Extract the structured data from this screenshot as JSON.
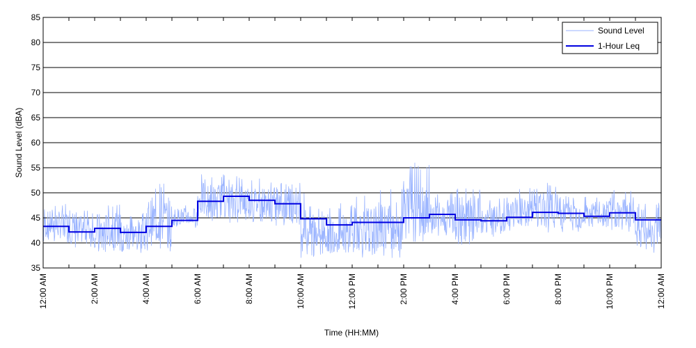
{
  "chart_data": {
    "type": "line",
    "xlabel": "Time (HH:MM)",
    "ylabel": "Sound Level (dBA)",
    "ylim": [
      35,
      85
    ],
    "yticks": [
      35,
      40,
      45,
      50,
      55,
      60,
      65,
      70,
      75,
      80,
      85
    ],
    "xlim_hours": [
      0,
      24
    ],
    "xtick_labels": [
      "12:00 AM",
      "2:00 AM",
      "4:00 AM",
      "6:00 AM",
      "8:00 AM",
      "10:00 AM",
      "12:00 PM",
      "2:00 PM",
      "4:00 PM",
      "6:00 PM",
      "8:00 PM",
      "10:00 PM",
      "12:00 AM"
    ],
    "grid": "horizontal",
    "legend_position": "top-right",
    "series": [
      {
        "name": "Sound Level",
        "color": "#99b3ff",
        "style": "thin line, high-frequency fluctuation around the hourly level",
        "approx_range_per_hour": [
          [
            40,
            48
          ],
          [
            39,
            47
          ],
          [
            38,
            48
          ],
          [
            38,
            46
          ],
          [
            38,
            52
          ],
          [
            43,
            48
          ],
          [
            44,
            54
          ],
          [
            44,
            54
          ],
          [
            44,
            53
          ],
          [
            43,
            52
          ],
          [
            37,
            50
          ],
          [
            37,
            48
          ],
          [
            37,
            50
          ],
          [
            37,
            51
          ],
          [
            40,
            56
          ],
          [
            41,
            50
          ],
          [
            39,
            52
          ],
          [
            41,
            49
          ],
          [
            42,
            51
          ],
          [
            42,
            52
          ],
          [
            42,
            50
          ],
          [
            42,
            50
          ],
          [
            42,
            51
          ],
          [
            38,
            48
          ]
        ]
      },
      {
        "name": "1-Hour Leq",
        "color": "#0000e0",
        "style": "stepped line, one value per hour",
        "values": [
          43.3,
          42.2,
          42.9,
          42.1,
          43.3,
          44.5,
          48.3,
          49.3,
          48.5,
          47.8,
          44.8,
          43.6,
          44.1,
          44.1,
          45.0,
          45.7,
          44.6,
          44.4,
          45.1,
          46.1,
          45.9,
          45.3,
          46.0,
          44.6
        ]
      }
    ]
  }
}
